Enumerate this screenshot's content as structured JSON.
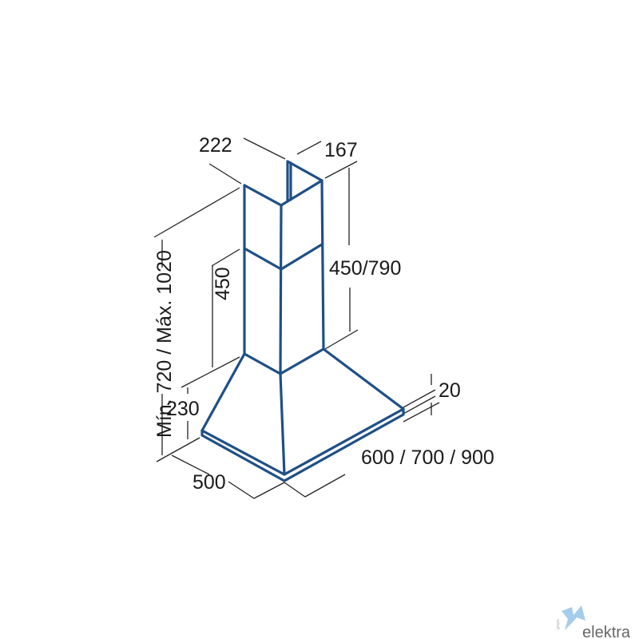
{
  "diagram": {
    "labels": {
      "chimney_width": "222",
      "chimney_depth": "167",
      "upper_chimney_height": "450/790",
      "lower_chimney_height": "450",
      "hood_height": "230",
      "total_height": "Mín. 720 / Máx. 1020",
      "hood_depth": "500",
      "hood_width": "600 / 700 / 900",
      "lip_height": "20"
    },
    "colors": {
      "outline": "#1f4f86",
      "dimension_lines": "#222222"
    }
  },
  "logo": {
    "brand": "elektra",
    "prefix": "grupo",
    "color": "#6fa8d8"
  }
}
